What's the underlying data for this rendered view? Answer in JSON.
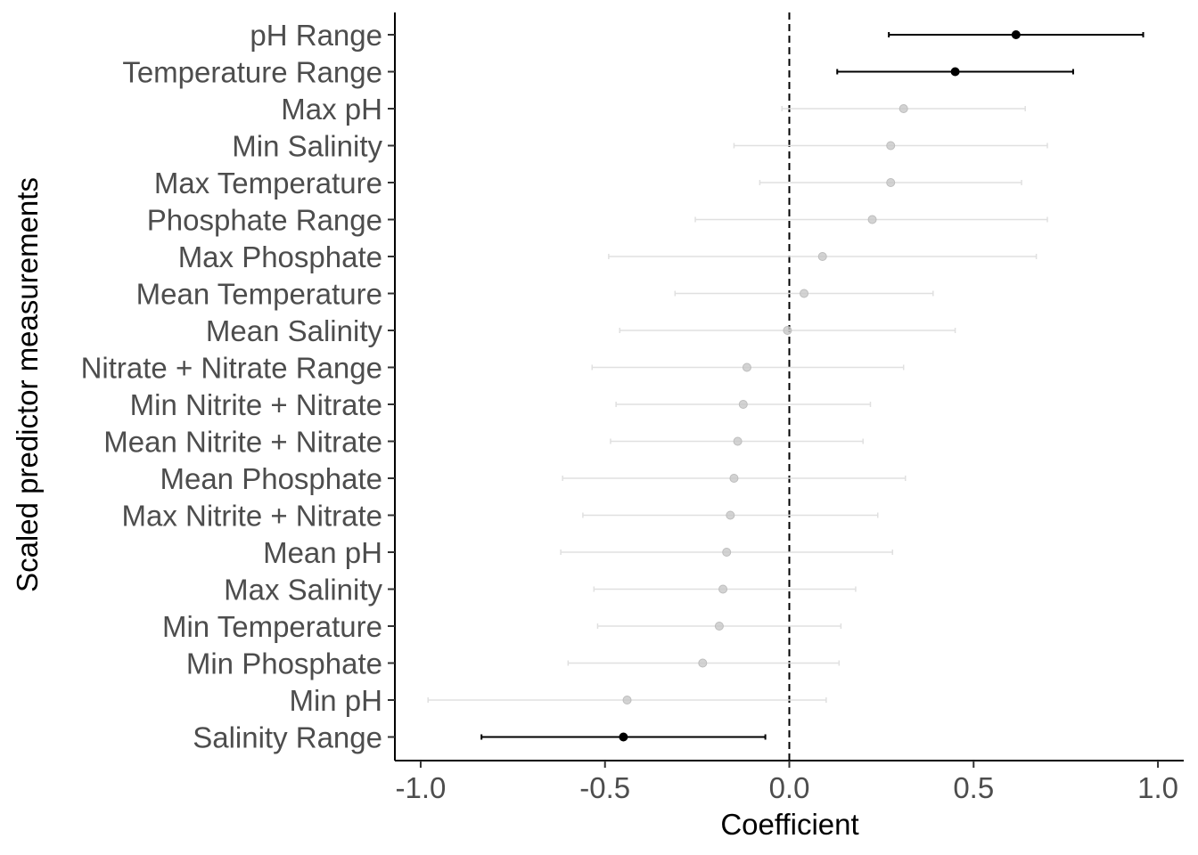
{
  "chart_data": {
    "type": "scatter",
    "subtype": "coefficient-plot",
    "xlabel": "Coefficient",
    "ylabel": "Scaled predictor measurements",
    "xlim": [
      -1.07,
      1.07
    ],
    "xticks": [
      -1.0,
      -0.5,
      0.0,
      0.5,
      1.0
    ],
    "xtick_labels": [
      "-1.0",
      "-0.5",
      "0.0",
      "0.5",
      "1.0"
    ],
    "reference_line": 0,
    "grid": false,
    "colors": {
      "significant": "#000000",
      "nonsignificant": "#c8c8c8",
      "errorbar_ns": "#e0e0e0",
      "label": "#4d4d4d"
    },
    "predictors": [
      {
        "label": "pH Range",
        "estimate": 0.615,
        "lower": 0.27,
        "upper": 0.96,
        "significant": true
      },
      {
        "label": "Temperature Range",
        "estimate": 0.45,
        "lower": 0.13,
        "upper": 0.77,
        "significant": true
      },
      {
        "label": "Max pH",
        "estimate": 0.31,
        "lower": -0.02,
        "upper": 0.64,
        "significant": false
      },
      {
        "label": "Min Salinity",
        "estimate": 0.275,
        "lower": -0.15,
        "upper": 0.7,
        "significant": false
      },
      {
        "label": "Max Temperature",
        "estimate": 0.275,
        "lower": -0.08,
        "upper": 0.63,
        "significant": false
      },
      {
        "label": "Phosphate Range",
        "estimate": 0.225,
        "lower": -0.255,
        "upper": 0.7,
        "significant": false
      },
      {
        "label": "Max Phosphate",
        "estimate": 0.09,
        "lower": -0.49,
        "upper": 0.67,
        "significant": false
      },
      {
        "label": "Mean Temperature",
        "estimate": 0.04,
        "lower": -0.31,
        "upper": 0.39,
        "significant": false
      },
      {
        "label": "Mean Salinity",
        "estimate": -0.005,
        "lower": -0.46,
        "upper": 0.45,
        "significant": false
      },
      {
        "label": "Nitrate + Nitrate Range",
        "estimate": -0.115,
        "lower": -0.535,
        "upper": 0.31,
        "significant": false
      },
      {
        "label": "Min Nitrite + Nitrate",
        "estimate": -0.125,
        "lower": -0.47,
        "upper": 0.22,
        "significant": false
      },
      {
        "label": "Mean Nitrite + Nitrate",
        "estimate": -0.14,
        "lower": -0.485,
        "upper": 0.2,
        "significant": false
      },
      {
        "label": "Mean Phosphate",
        "estimate": -0.15,
        "lower": -0.615,
        "upper": 0.315,
        "significant": false
      },
      {
        "label": "Max Nitrite + Nitrate",
        "estimate": -0.16,
        "lower": -0.56,
        "upper": 0.24,
        "significant": false
      },
      {
        "label": "Mean pH",
        "estimate": -0.17,
        "lower": -0.62,
        "upper": 0.28,
        "significant": false
      },
      {
        "label": "Max Salinity",
        "estimate": -0.18,
        "lower": -0.53,
        "upper": 0.18,
        "significant": false
      },
      {
        "label": "Min Temperature",
        "estimate": -0.19,
        "lower": -0.52,
        "upper": 0.14,
        "significant": false
      },
      {
        "label": "Min Phosphate",
        "estimate": -0.235,
        "lower": -0.6,
        "upper": 0.135,
        "significant": false
      },
      {
        "label": "Min pH",
        "estimate": -0.44,
        "lower": -0.98,
        "upper": 0.1,
        "significant": false
      },
      {
        "label": "Salinity Range",
        "estimate": -0.45,
        "lower": -0.835,
        "upper": -0.065,
        "significant": true
      }
    ]
  }
}
